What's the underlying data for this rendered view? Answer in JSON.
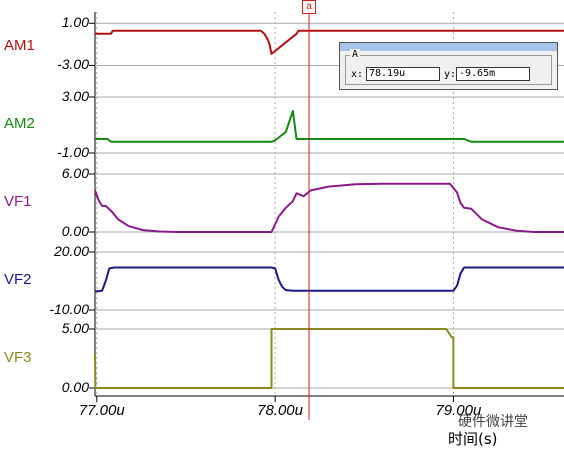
{
  "chart_data": {
    "type": "line",
    "x_unit": "s",
    "xlim": [
      76.99,
      79.62
    ],
    "x_ticks": [
      "77.00u",
      "78.00u",
      "79.00u"
    ],
    "x_tick_values": [
      77.0,
      78.0,
      79.0
    ],
    "xlabel": "时间(s)",
    "panels": [
      {
        "name": "AM1",
        "color": "#b01010",
        "ylim": [
          -4.0,
          1.5
        ],
        "y_ticks": [
          {
            "label": "1.00",
            "value": 1.0
          },
          {
            "label": "-3.00",
            "value": -3.0
          }
        ],
        "x": [
          76.99,
          77.08,
          77.09,
          77.92,
          77.94,
          77.96,
          77.97,
          77.98,
          78.12,
          78.13,
          79.62
        ],
        "y": [
          0.0,
          0.0,
          0.3,
          0.3,
          0.0,
          -0.6,
          -1.1,
          -1.9,
          0.0,
          0.3,
          0.3
        ]
      },
      {
        "name": "AM2",
        "color": "#138a13",
        "ylim": [
          -1.0,
          3.0
        ],
        "y_ticks": [
          {
            "label": "3.00",
            "value": 3.0
          },
          {
            "label": "-1.00",
            "value": -1.0
          }
        ],
        "x": [
          76.99,
          77.06,
          77.08,
          77.98,
          78.0,
          78.06,
          78.1,
          78.12,
          79.06,
          79.1,
          79.62
        ],
        "y": [
          0.0,
          0.0,
          -0.2,
          -0.2,
          -0.1,
          0.5,
          2.0,
          0.0,
          0.0,
          -0.2,
          -0.2
        ]
      },
      {
        "name": "VF1",
        "color": "#8a1a8a",
        "ylim": [
          0.0,
          6.0
        ],
        "y_ticks": [
          {
            "label": "6.00",
            "value": 6.0
          },
          {
            "label": "0.00",
            "value": 0.0
          }
        ],
        "x": [
          76.99,
          77.01,
          77.03,
          77.05,
          77.08,
          77.12,
          77.18,
          77.26,
          77.35,
          77.45,
          77.98,
          78.02,
          78.06,
          78.1,
          78.12,
          78.16,
          78.2,
          78.3,
          78.45,
          78.6,
          78.98,
          79.02,
          79.04,
          79.06,
          79.1,
          79.16,
          79.25,
          79.35,
          79.45,
          79.62
        ],
        "y": [
          4.3,
          3.3,
          2.7,
          2.7,
          2.2,
          1.3,
          0.6,
          0.2,
          0.05,
          0.0,
          0.0,
          1.6,
          2.5,
          3.2,
          4.0,
          3.7,
          4.3,
          4.7,
          4.95,
          5.0,
          5.0,
          4.1,
          3.0,
          2.5,
          2.4,
          1.3,
          0.5,
          0.15,
          0.0,
          0.0
        ]
      },
      {
        "name": "VF2",
        "color": "#1a1a8a",
        "ylim": [
          -10.0,
          20.0
        ],
        "y_ticks": [
          {
            "label": "20.00",
            "value": 20.0
          },
          {
            "label": "-10.00",
            "value": -10.0
          }
        ],
        "x": [
          76.99,
          77.01,
          77.03,
          77.05,
          77.07,
          77.1,
          77.98,
          78.0,
          78.02,
          78.04,
          78.06,
          78.1,
          79.0,
          79.02,
          79.04,
          79.06,
          79.62
        ],
        "y": [
          -0.3,
          -0.3,
          0.0,
          5.0,
          11.5,
          12.0,
          12.0,
          11.5,
          5.5,
          2.0,
          0.3,
          0.0,
          0.0,
          2.5,
          9.0,
          12.0,
          12.0
        ]
      },
      {
        "name": "VF3",
        "color": "#8a8a20",
        "ylim": [
          0.0,
          5.0
        ],
        "y_ticks": [
          {
            "label": "5.00",
            "value": 5.0
          },
          {
            "label": "0.00",
            "value": 0.0
          }
        ],
        "x": [
          76.99,
          76.992,
          77.98,
          77.98,
          78.96,
          78.99,
          79.0,
          79.0,
          79.62
        ],
        "y": [
          2.9,
          0.0,
          0.0,
          5.0,
          5.0,
          4.3,
          4.3,
          0.0,
          0.0
        ]
      }
    ],
    "cursor": {
      "label": "a",
      "x": 78.19
    },
    "grid": true
  },
  "cursor_box": {
    "title": "A",
    "x_label": "x:",
    "x_value": "78.19u",
    "y_label": "y:",
    "y_value": "-9.65m"
  },
  "watermark": "硬件微讲堂",
  "colors": {
    "cursor": "#d02020",
    "grid": "#aaaaaa",
    "axis": "#000000"
  }
}
